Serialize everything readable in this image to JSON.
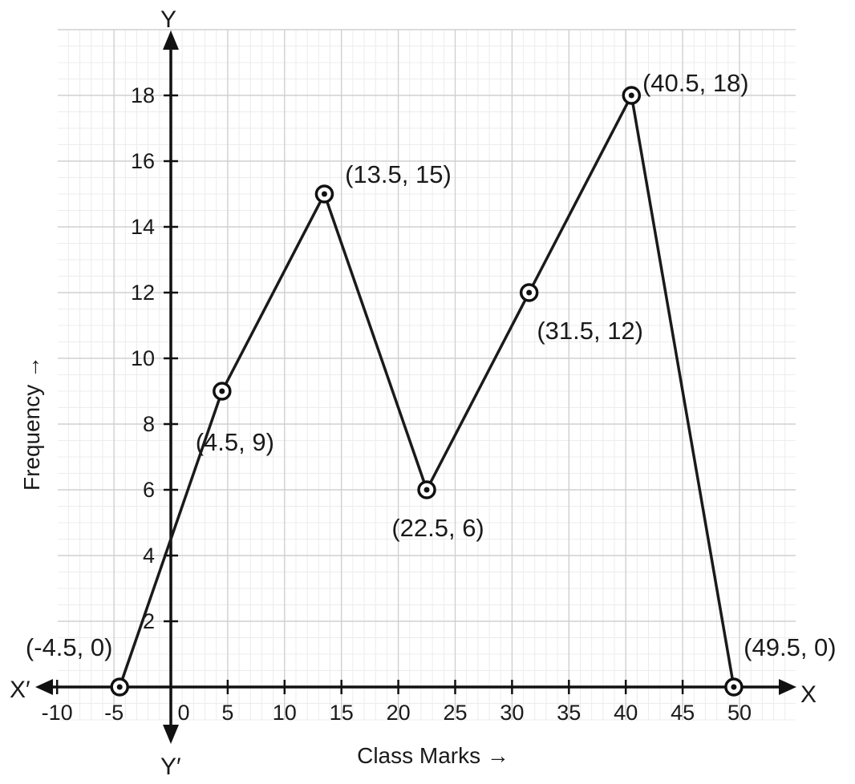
{
  "chart_data": {
    "type": "line",
    "title": "",
    "xlabel": "Class Marks →",
    "ylabel": "Frequency →",
    "axis_letters": {
      "x_pos": "X",
      "x_neg": "X′",
      "y_pos": "Y",
      "y_neg": "Y′"
    },
    "xlim": [
      -10,
      54
    ],
    "ylim": [
      -1,
      20
    ],
    "x_ticks": [
      -10,
      -5,
      0,
      5,
      10,
      15,
      20,
      25,
      30,
      35,
      40,
      45,
      50
    ],
    "y_ticks": [
      2,
      4,
      6,
      8,
      10,
      12,
      14,
      16,
      18
    ],
    "grid": true,
    "series": [
      {
        "points": [
          {
            "x": -4.5,
            "y": 0,
            "label": "(-4.5, 0)"
          },
          {
            "x": 4.5,
            "y": 9,
            "label": "(4.5, 9)"
          },
          {
            "x": 13.5,
            "y": 15,
            "label": "(13.5, 15)"
          },
          {
            "x": 22.5,
            "y": 6,
            "label": "(22.5, 6)"
          },
          {
            "x": 31.5,
            "y": 12,
            "label": "(31.5, 12)"
          },
          {
            "x": 40.5,
            "y": 18,
            "label": "(40.5, 18)"
          },
          {
            "x": 49.5,
            "y": 0,
            "label": "(49.5, 0)"
          }
        ]
      }
    ]
  }
}
